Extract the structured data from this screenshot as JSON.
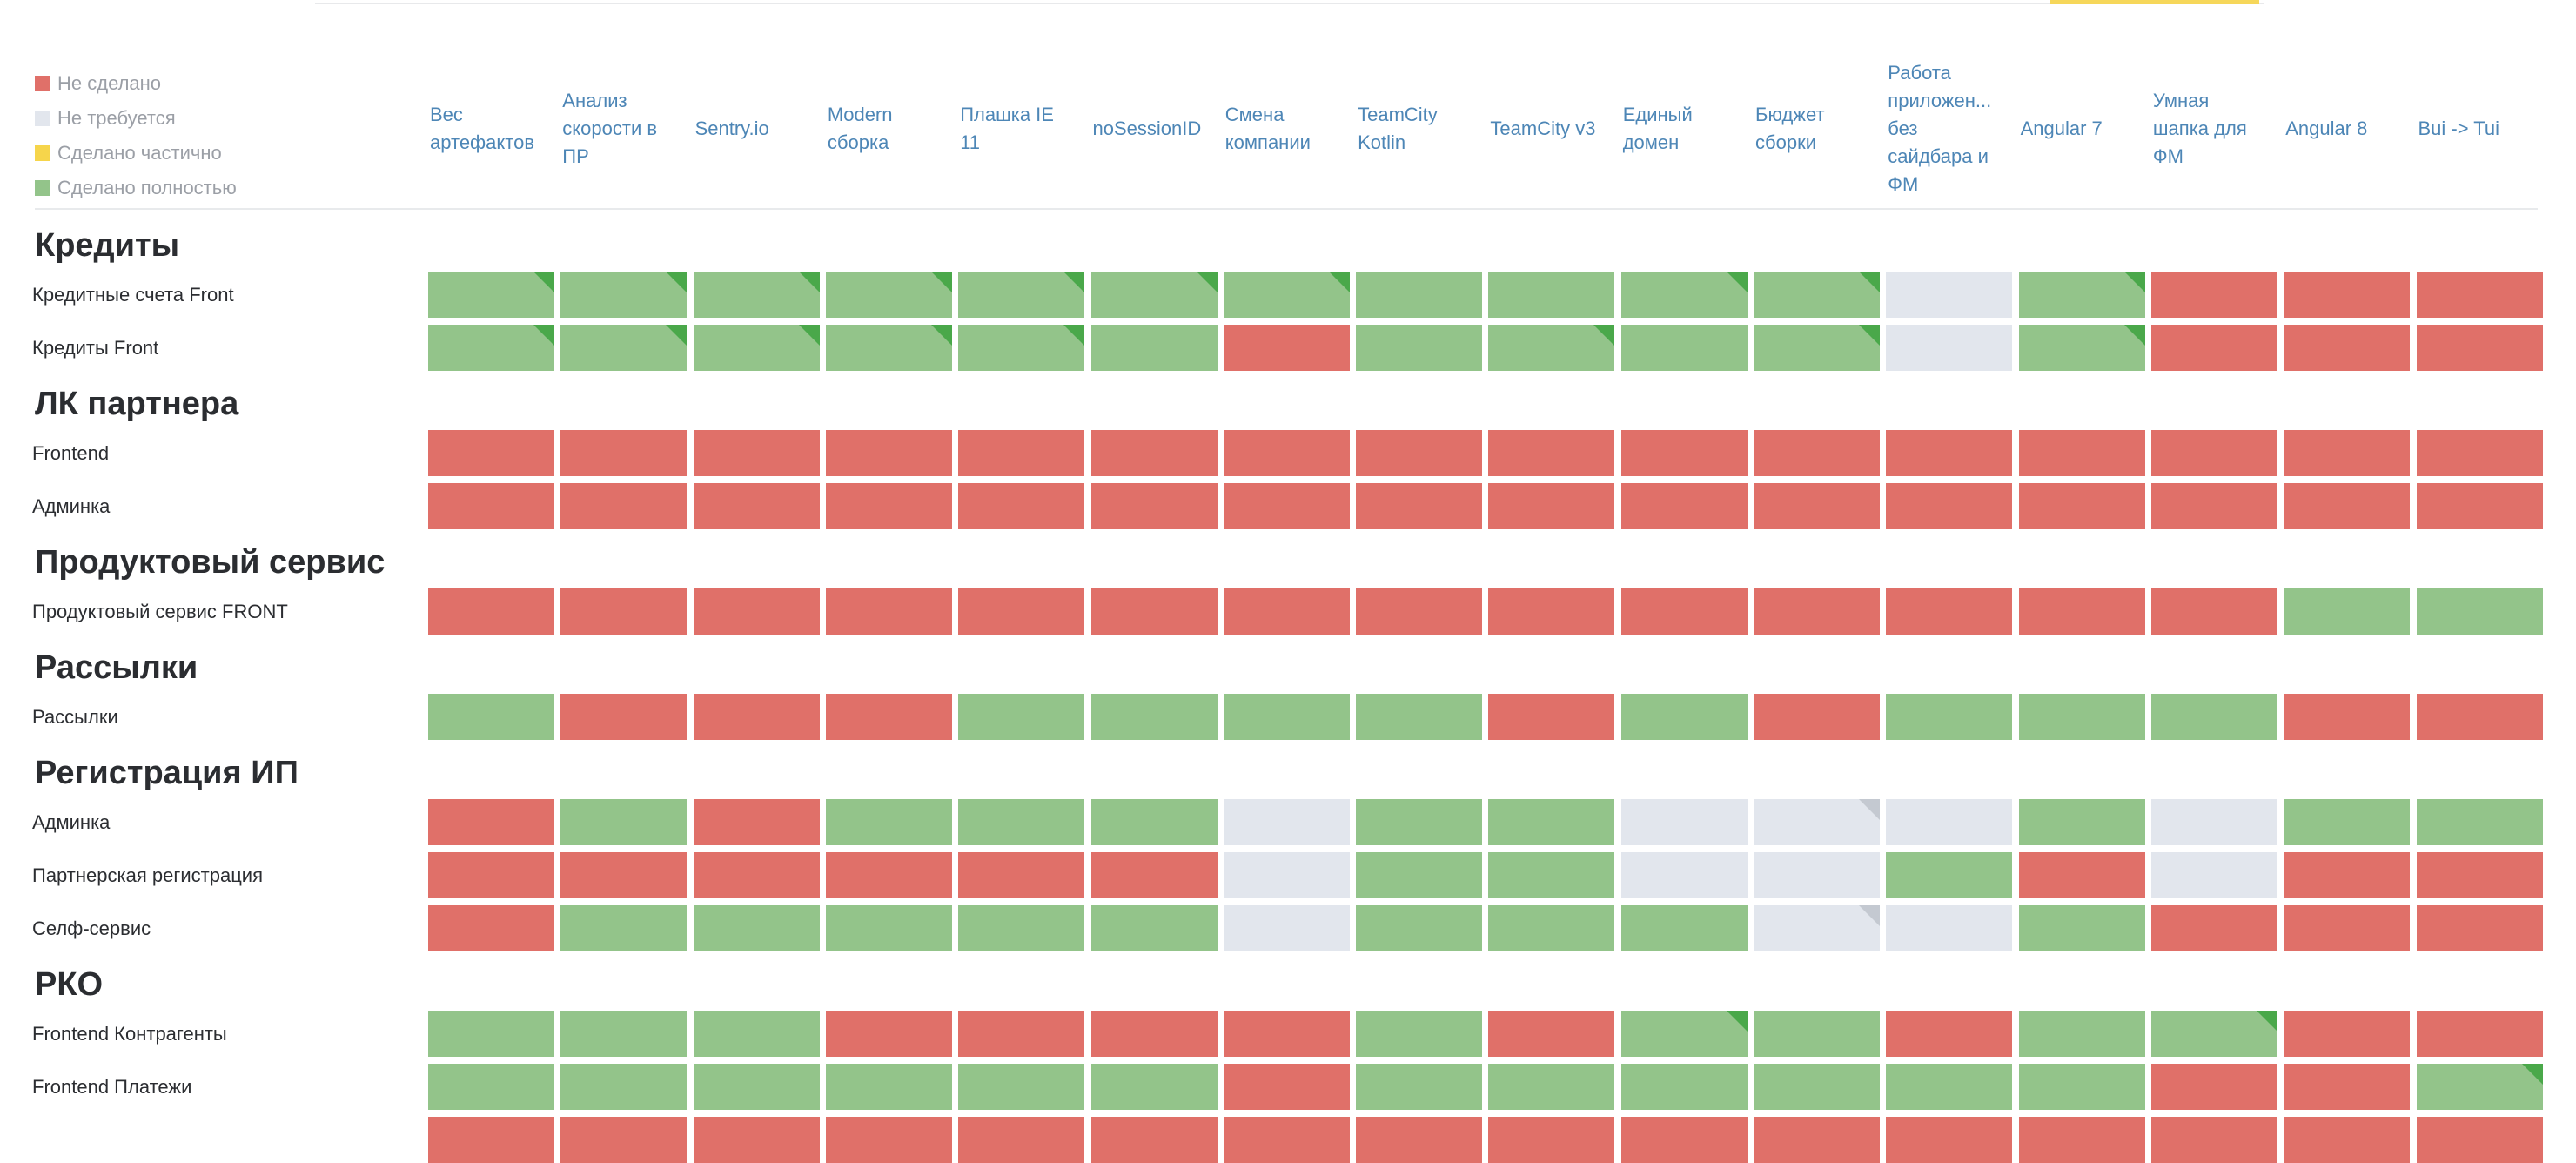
{
  "colors": {
    "not_done": "#e07069",
    "not_required": "#e2e6ed",
    "partial": "#f6d54b",
    "done": "#93c48a",
    "corner_done": "#4aa84a",
    "corner_not_required": "#c4c9d1"
  },
  "legend": [
    {
      "label": "Не сделано",
      "status": "r"
    },
    {
      "label": "Не требуется",
      "status": "n"
    },
    {
      "label": "Сделано частично",
      "status": "y"
    },
    {
      "label": "Сделано полностью",
      "status": "g"
    }
  ],
  "columns": [
    "Вес\nартефактов",
    "Анализ\nскорости в\nПР",
    "Sentry.io",
    "Modern\nсборка",
    "Плашка IE\n11",
    "noSessionID",
    "Смена\nкомпании",
    "TeamCity\nKotlin",
    "TeamCity v3",
    "Единый\nдомен",
    "Бюджет\nсборки",
    "Работа\nприложен...\nбез\nсайдбара и\nФМ",
    "Angular 7",
    "Умная\nшапка для\nФМ",
    "Angular 8",
    "Bui -> Tui"
  ],
  "sections": [
    {
      "title": "Кредиты",
      "rows": [
        {
          "label": "Кредитные счета Front",
          "cells": [
            "g+",
            "g+",
            "g+",
            "g+",
            "g+",
            "g+",
            "g+",
            "g",
            "g",
            "g+",
            "g+",
            "n",
            "g+",
            "r",
            "r",
            "r"
          ]
        },
        {
          "label": "Кредиты Front",
          "cells": [
            "g+",
            "g+",
            "g+",
            "g+",
            "g+",
            "g",
            "r",
            "g",
            "g+",
            "g",
            "g+",
            "n",
            "g+",
            "r",
            "r",
            "r"
          ]
        }
      ]
    },
    {
      "title": "ЛК партнера",
      "rows": [
        {
          "label": "Frontend",
          "cells": [
            "r",
            "r",
            "r",
            "r",
            "r",
            "r",
            "r",
            "r",
            "r",
            "r",
            "r",
            "r",
            "r",
            "r",
            "r",
            "r"
          ]
        },
        {
          "label": "Админка",
          "cells": [
            "r",
            "r",
            "r",
            "r",
            "r",
            "r",
            "r",
            "r",
            "r",
            "r",
            "r",
            "r",
            "r",
            "r",
            "r",
            "r"
          ]
        }
      ]
    },
    {
      "title": "Продуктовый сервис",
      "rows": [
        {
          "label": "Продуктовый сервис FRONT",
          "cells": [
            "r",
            "r",
            "r",
            "r",
            "r",
            "r",
            "r",
            "r",
            "r",
            "r",
            "r",
            "r",
            "r",
            "r",
            "g",
            "g"
          ]
        }
      ]
    },
    {
      "title": "Рассылки",
      "rows": [
        {
          "label": "Рассылки",
          "cells": [
            "g",
            "r",
            "r",
            "r",
            "g",
            "g",
            "g",
            "g",
            "r",
            "g",
            "r",
            "g",
            "g",
            "g",
            "r",
            "r"
          ]
        }
      ]
    },
    {
      "title": "Регистрация ИП",
      "rows": [
        {
          "label": "Админка",
          "cells": [
            "r",
            "g",
            "r",
            "g",
            "g",
            "g",
            "n",
            "g",
            "g",
            "n",
            "n+",
            "n",
            "g",
            "n",
            "g",
            "g"
          ]
        },
        {
          "label": "Партнерская регистрация",
          "cells": [
            "r",
            "r",
            "r",
            "r",
            "r",
            "r",
            "n",
            "g",
            "g",
            "n",
            "n",
            "g",
            "r",
            "n",
            "r",
            "r"
          ]
        },
        {
          "label": "Селф-сервис",
          "cells": [
            "r",
            "g",
            "g",
            "g",
            "g",
            "g",
            "n",
            "g",
            "g",
            "g",
            "n+",
            "n",
            "g",
            "r",
            "r",
            "r"
          ]
        }
      ]
    },
    {
      "title": "РКО",
      "rows": [
        {
          "label": "Frontend Контрагенты",
          "cells": [
            "g",
            "g",
            "g",
            "r",
            "r",
            "r",
            "r",
            "g",
            "r",
            "g+",
            "g",
            "r",
            "g",
            "g+",
            "r",
            "r"
          ]
        },
        {
          "label": "Frontend Платежи",
          "cells": [
            "g",
            "g",
            "g",
            "g",
            "g",
            "g",
            "r",
            "g",
            "g",
            "g",
            "g",
            "g",
            "g",
            "r",
            "r",
            "g+"
          ]
        },
        {
          "label": "",
          "cells": [
            "r",
            "r",
            "r",
            "r",
            "r",
            "r",
            "r",
            "r",
            "r",
            "r",
            "r",
            "r",
            "r",
            "r",
            "r",
            "r"
          ]
        }
      ]
    }
  ]
}
